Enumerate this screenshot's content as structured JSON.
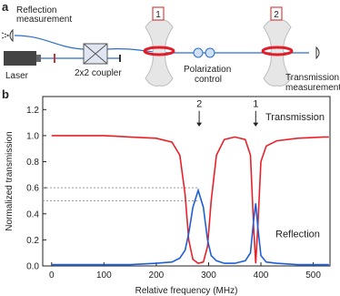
{
  "diagram": {
    "panel_label": "a",
    "reflection_measurement": [
      "Reflection",
      "measurement"
    ],
    "laser": "Laser",
    "coupler": "2x2 coupler",
    "resonator_1": "1",
    "resonator_2": "2",
    "polarization_control": [
      "Polarization",
      "control"
    ],
    "transmission_measurement": [
      "Transmission",
      "measurement"
    ]
  },
  "chart_data": {
    "type": "line",
    "panel_label": "b",
    "xlabel": "Relative frequency (MHz)",
    "ylabel": "Normalized transmission",
    "x": [
      0,
      50,
      100,
      150,
      200,
      230,
      245,
      255,
      262,
      270,
      280,
      290,
      298,
      305,
      315,
      330,
      350,
      370,
      380,
      386,
      390,
      394,
      400,
      410,
      430,
      470,
      520,
      530
    ],
    "series": [
      {
        "name": "Transmission",
        "color": "#e8212a",
        "values": [
          1.0,
          1.0,
          1.0,
          0.99,
          0.98,
          0.95,
          0.85,
          0.55,
          0.2,
          0.05,
          0.02,
          0.03,
          0.15,
          0.5,
          0.85,
          0.97,
          0.99,
          0.97,
          0.85,
          0.3,
          0.02,
          0.3,
          0.8,
          0.92,
          0.96,
          0.98,
          0.99,
          0.99
        ]
      },
      {
        "name": "Reflection",
        "color": "#1f5fd6",
        "values": [
          0.01,
          0.01,
          0.01,
          0.01,
          0.02,
          0.03,
          0.06,
          0.12,
          0.25,
          0.45,
          0.58,
          0.45,
          0.2,
          0.08,
          0.04,
          0.02,
          0.02,
          0.04,
          0.1,
          0.35,
          0.48,
          0.3,
          0.08,
          0.03,
          0.02,
          0.01,
          0.01,
          0.01
        ]
      }
    ],
    "annotations": [
      {
        "text": "2",
        "x": 282
      },
      {
        "text": "1",
        "x": 390
      }
    ],
    "reference_lines": [
      0.6,
      0.5
    ],
    "xlim": [
      -17,
      532
    ],
    "ylim": [
      0,
      1.3
    ],
    "xticks": [
      0,
      100,
      200,
      300,
      400,
      500
    ],
    "yticks": [
      {
        "value": 0,
        "label": "0.0"
      },
      0.2,
      0.4,
      0.6,
      0.8,
      {
        "value": 1,
        "label": "1.0"
      },
      1.2
    ]
  }
}
